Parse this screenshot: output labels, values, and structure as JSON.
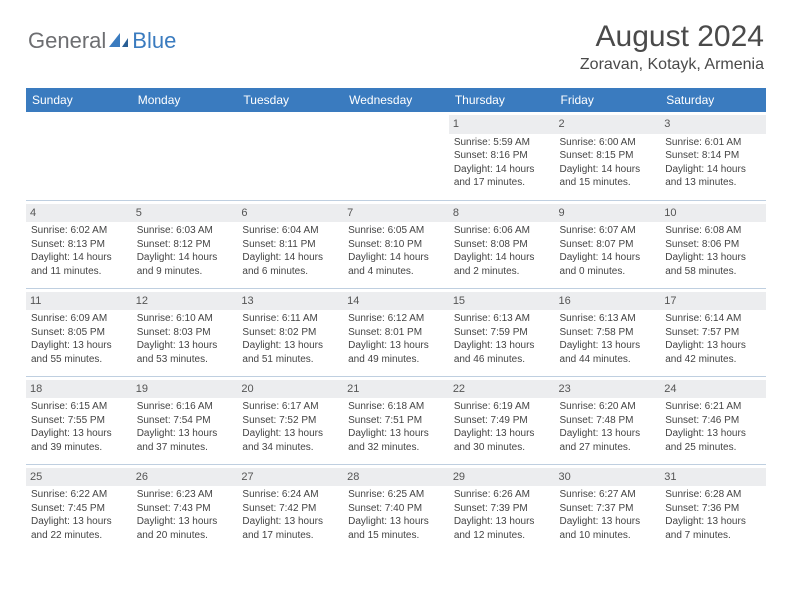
{
  "brand": {
    "text1": "General",
    "text2": "Blue"
  },
  "title": "August 2024",
  "location": "Zoravan, Kotayk, Armenia",
  "colors": {
    "header_bg": "#3a7bbf",
    "header_text": "#ffffff",
    "daynum_bg": "#ecedef",
    "grid_line": "#bfcfe0",
    "body_text": "#444444",
    "title_text": "#4a4a4a",
    "logo_gray": "#6d6e71",
    "logo_blue": "#3a7bbf"
  },
  "typography": {
    "title_fontsize": 30,
    "location_fontsize": 16,
    "th_fontsize": 12,
    "cell_fontsize": 10
  },
  "weekdays": [
    "Sunday",
    "Monday",
    "Tuesday",
    "Wednesday",
    "Thursday",
    "Friday",
    "Saturday"
  ],
  "weeks": [
    [
      {
        "empty": true
      },
      {
        "empty": true
      },
      {
        "empty": true
      },
      {
        "empty": true
      },
      {
        "day": "1",
        "sunrise": "Sunrise: 5:59 AM",
        "sunset": "Sunset: 8:16 PM",
        "daylight": "Daylight: 14 hours and 17 minutes."
      },
      {
        "day": "2",
        "sunrise": "Sunrise: 6:00 AM",
        "sunset": "Sunset: 8:15 PM",
        "daylight": "Daylight: 14 hours and 15 minutes."
      },
      {
        "day": "3",
        "sunrise": "Sunrise: 6:01 AM",
        "sunset": "Sunset: 8:14 PM",
        "daylight": "Daylight: 14 hours and 13 minutes."
      }
    ],
    [
      {
        "day": "4",
        "sunrise": "Sunrise: 6:02 AM",
        "sunset": "Sunset: 8:13 PM",
        "daylight": "Daylight: 14 hours and 11 minutes."
      },
      {
        "day": "5",
        "sunrise": "Sunrise: 6:03 AM",
        "sunset": "Sunset: 8:12 PM",
        "daylight": "Daylight: 14 hours and 9 minutes."
      },
      {
        "day": "6",
        "sunrise": "Sunrise: 6:04 AM",
        "sunset": "Sunset: 8:11 PM",
        "daylight": "Daylight: 14 hours and 6 minutes."
      },
      {
        "day": "7",
        "sunrise": "Sunrise: 6:05 AM",
        "sunset": "Sunset: 8:10 PM",
        "daylight": "Daylight: 14 hours and 4 minutes."
      },
      {
        "day": "8",
        "sunrise": "Sunrise: 6:06 AM",
        "sunset": "Sunset: 8:08 PM",
        "daylight": "Daylight: 14 hours and 2 minutes."
      },
      {
        "day": "9",
        "sunrise": "Sunrise: 6:07 AM",
        "sunset": "Sunset: 8:07 PM",
        "daylight": "Daylight: 14 hours and 0 minutes."
      },
      {
        "day": "10",
        "sunrise": "Sunrise: 6:08 AM",
        "sunset": "Sunset: 8:06 PM",
        "daylight": "Daylight: 13 hours and 58 minutes."
      }
    ],
    [
      {
        "day": "11",
        "sunrise": "Sunrise: 6:09 AM",
        "sunset": "Sunset: 8:05 PM",
        "daylight": "Daylight: 13 hours and 55 minutes."
      },
      {
        "day": "12",
        "sunrise": "Sunrise: 6:10 AM",
        "sunset": "Sunset: 8:03 PM",
        "daylight": "Daylight: 13 hours and 53 minutes."
      },
      {
        "day": "13",
        "sunrise": "Sunrise: 6:11 AM",
        "sunset": "Sunset: 8:02 PM",
        "daylight": "Daylight: 13 hours and 51 minutes."
      },
      {
        "day": "14",
        "sunrise": "Sunrise: 6:12 AM",
        "sunset": "Sunset: 8:01 PM",
        "daylight": "Daylight: 13 hours and 49 minutes."
      },
      {
        "day": "15",
        "sunrise": "Sunrise: 6:13 AM",
        "sunset": "Sunset: 7:59 PM",
        "daylight": "Daylight: 13 hours and 46 minutes."
      },
      {
        "day": "16",
        "sunrise": "Sunrise: 6:13 AM",
        "sunset": "Sunset: 7:58 PM",
        "daylight": "Daylight: 13 hours and 44 minutes."
      },
      {
        "day": "17",
        "sunrise": "Sunrise: 6:14 AM",
        "sunset": "Sunset: 7:57 PM",
        "daylight": "Daylight: 13 hours and 42 minutes."
      }
    ],
    [
      {
        "day": "18",
        "sunrise": "Sunrise: 6:15 AM",
        "sunset": "Sunset: 7:55 PM",
        "daylight": "Daylight: 13 hours and 39 minutes."
      },
      {
        "day": "19",
        "sunrise": "Sunrise: 6:16 AM",
        "sunset": "Sunset: 7:54 PM",
        "daylight": "Daylight: 13 hours and 37 minutes."
      },
      {
        "day": "20",
        "sunrise": "Sunrise: 6:17 AM",
        "sunset": "Sunset: 7:52 PM",
        "daylight": "Daylight: 13 hours and 34 minutes."
      },
      {
        "day": "21",
        "sunrise": "Sunrise: 6:18 AM",
        "sunset": "Sunset: 7:51 PM",
        "daylight": "Daylight: 13 hours and 32 minutes."
      },
      {
        "day": "22",
        "sunrise": "Sunrise: 6:19 AM",
        "sunset": "Sunset: 7:49 PM",
        "daylight": "Daylight: 13 hours and 30 minutes."
      },
      {
        "day": "23",
        "sunrise": "Sunrise: 6:20 AM",
        "sunset": "Sunset: 7:48 PM",
        "daylight": "Daylight: 13 hours and 27 minutes."
      },
      {
        "day": "24",
        "sunrise": "Sunrise: 6:21 AM",
        "sunset": "Sunset: 7:46 PM",
        "daylight": "Daylight: 13 hours and 25 minutes."
      }
    ],
    [
      {
        "day": "25",
        "sunrise": "Sunrise: 6:22 AM",
        "sunset": "Sunset: 7:45 PM",
        "daylight": "Daylight: 13 hours and 22 minutes."
      },
      {
        "day": "26",
        "sunrise": "Sunrise: 6:23 AM",
        "sunset": "Sunset: 7:43 PM",
        "daylight": "Daylight: 13 hours and 20 minutes."
      },
      {
        "day": "27",
        "sunrise": "Sunrise: 6:24 AM",
        "sunset": "Sunset: 7:42 PM",
        "daylight": "Daylight: 13 hours and 17 minutes."
      },
      {
        "day": "28",
        "sunrise": "Sunrise: 6:25 AM",
        "sunset": "Sunset: 7:40 PM",
        "daylight": "Daylight: 13 hours and 15 minutes."
      },
      {
        "day": "29",
        "sunrise": "Sunrise: 6:26 AM",
        "sunset": "Sunset: 7:39 PM",
        "daylight": "Daylight: 13 hours and 12 minutes."
      },
      {
        "day": "30",
        "sunrise": "Sunrise: 6:27 AM",
        "sunset": "Sunset: 7:37 PM",
        "daylight": "Daylight: 13 hours and 10 minutes."
      },
      {
        "day": "31",
        "sunrise": "Sunrise: 6:28 AM",
        "sunset": "Sunset: 7:36 PM",
        "daylight": "Daylight: 13 hours and 7 minutes."
      }
    ]
  ]
}
